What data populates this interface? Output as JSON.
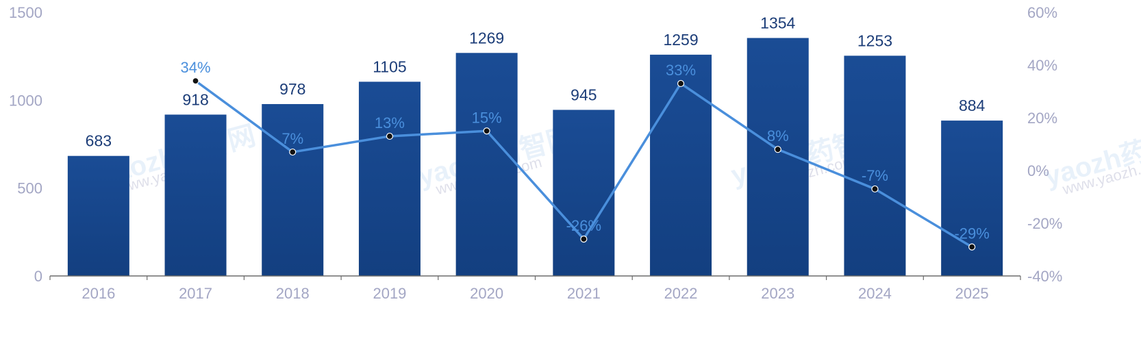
{
  "chart_data": {
    "type": "bar",
    "categories": [
      "2016",
      "2017",
      "2018",
      "2019",
      "2020",
      "2021",
      "2022",
      "2023",
      "2024",
      "2025"
    ],
    "series": [
      {
        "values": [
          683,
          918,
          978,
          1105,
          1269,
          945,
          1259,
          1354,
          1253,
          884
        ],
        "kind": "bar",
        "axis": "left",
        "color": "#174a90"
      },
      {
        "values": [
          null,
          34,
          7,
          13,
          15,
          -26,
          33,
          8,
          -7,
          -29
        ],
        "kind": "line",
        "axis": "right",
        "unit": "%",
        "color": "#4a8fdc"
      }
    ],
    "left_axis": {
      "ylim": [
        0,
        1500
      ],
      "ticks": [
        "0",
        "500",
        "1000",
        "1500"
      ]
    },
    "right_axis": {
      "ylim": [
        -40,
        60
      ],
      "ticks": [
        "-40%",
        "-20%",
        "0%",
        "20%",
        "40%",
        "60%"
      ]
    },
    "bar_labels": [
      "683",
      "918",
      "978",
      "1105",
      "1269",
      "945",
      "1259",
      "1354",
      "1253",
      "884"
    ],
    "line_labels": [
      "34%",
      "7%",
      "13%",
      "15%",
      "-26%",
      "33%",
      "8%",
      "-7%",
      "-29%"
    ],
    "grid": false,
    "title": "",
    "xlabel": "",
    "ylabel": ""
  },
  "watermark": {
    "text": "yaozh药智网",
    "sub": "www.yaozh.com"
  }
}
